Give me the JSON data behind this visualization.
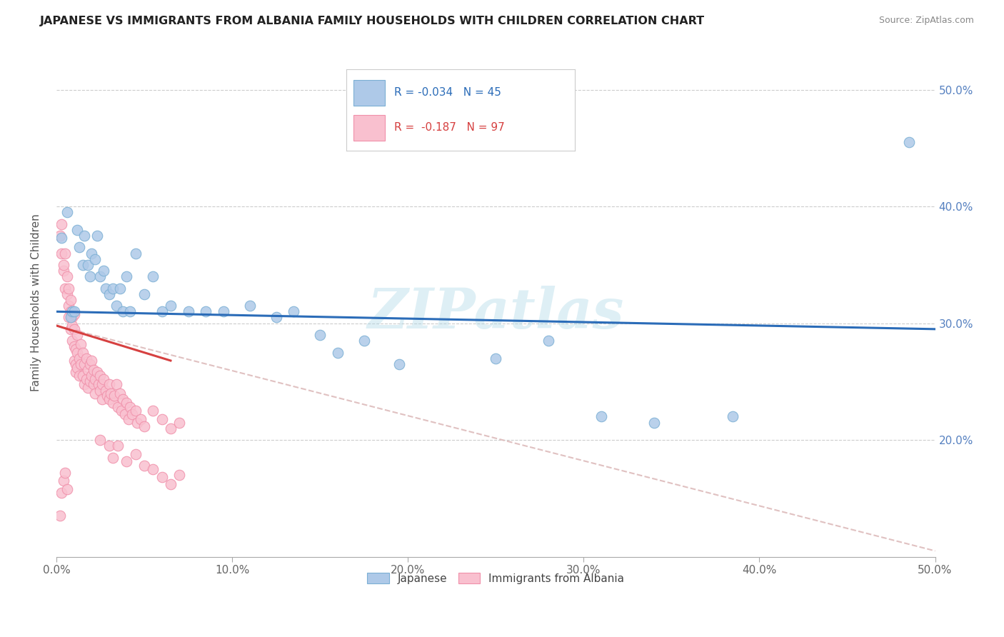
{
  "title": "JAPANESE VS IMMIGRANTS FROM ALBANIA FAMILY HOUSEHOLDS WITH CHILDREN CORRELATION CHART",
  "source": "Source: ZipAtlas.com",
  "ylabel": "Family Households with Children",
  "watermark": "ZIPatlas",
  "xlim": [
    0.0,
    0.5
  ],
  "ylim": [
    0.1,
    0.535
  ],
  "xtick_vals": [
    0.0,
    0.1,
    0.2,
    0.3,
    0.4,
    0.5
  ],
  "ytick_vals": [
    0.2,
    0.3,
    0.4,
    0.5
  ],
  "legend_r1": "R = -0.034",
  "legend_n1": "N = 45",
  "legend_r2": "R =  -0.187",
  "legend_n2": "N = 97",
  "blue_scatter_color": "#aec9e8",
  "blue_edge_color": "#7bafd4",
  "pink_scatter_color": "#f9c0cf",
  "pink_edge_color": "#f090aa",
  "blue_line_color": "#2b6cb8",
  "pink_line_color": "#d64040",
  "dashed_line_color": "#ddbbbb",
  "blue_line": {
    "x0": 0.0,
    "y0": 0.31,
    "x1": 0.5,
    "y1": 0.295
  },
  "pink_line_solid": {
    "x0": 0.0,
    "y0": 0.298,
    "x1": 0.065,
    "y1": 0.268
  },
  "pink_line_dashed": {
    "x0": 0.0,
    "y0": 0.298,
    "x1": 0.5,
    "y1": 0.105
  },
  "japanese_pts": [
    [
      0.003,
      0.373
    ],
    [
      0.006,
      0.395
    ],
    [
      0.008,
      0.305
    ],
    [
      0.009,
      0.31
    ],
    [
      0.01,
      0.31
    ],
    [
      0.012,
      0.38
    ],
    [
      0.013,
      0.365
    ],
    [
      0.015,
      0.35
    ],
    [
      0.016,
      0.375
    ],
    [
      0.018,
      0.35
    ],
    [
      0.019,
      0.34
    ],
    [
      0.02,
      0.36
    ],
    [
      0.022,
      0.355
    ],
    [
      0.023,
      0.375
    ],
    [
      0.025,
      0.34
    ],
    [
      0.027,
      0.345
    ],
    [
      0.028,
      0.33
    ],
    [
      0.03,
      0.325
    ],
    [
      0.032,
      0.33
    ],
    [
      0.034,
      0.315
    ],
    [
      0.036,
      0.33
    ],
    [
      0.038,
      0.31
    ],
    [
      0.04,
      0.34
    ],
    [
      0.042,
      0.31
    ],
    [
      0.045,
      0.36
    ],
    [
      0.05,
      0.325
    ],
    [
      0.055,
      0.34
    ],
    [
      0.06,
      0.31
    ],
    [
      0.065,
      0.315
    ],
    [
      0.075,
      0.31
    ],
    [
      0.085,
      0.31
    ],
    [
      0.095,
      0.31
    ],
    [
      0.11,
      0.315
    ],
    [
      0.125,
      0.305
    ],
    [
      0.135,
      0.31
    ],
    [
      0.15,
      0.29
    ],
    [
      0.16,
      0.275
    ],
    [
      0.175,
      0.285
    ],
    [
      0.195,
      0.265
    ],
    [
      0.25,
      0.27
    ],
    [
      0.28,
      0.285
    ],
    [
      0.31,
      0.22
    ],
    [
      0.34,
      0.215
    ],
    [
      0.385,
      0.22
    ],
    [
      0.485,
      0.455
    ]
  ],
  "albania_pts": [
    [
      0.002,
      0.375
    ],
    [
      0.003,
      0.36
    ],
    [
      0.003,
      0.385
    ],
    [
      0.004,
      0.345
    ],
    [
      0.004,
      0.35
    ],
    [
      0.005,
      0.33
    ],
    [
      0.005,
      0.36
    ],
    [
      0.006,
      0.325
    ],
    [
      0.006,
      0.34
    ],
    [
      0.007,
      0.315
    ],
    [
      0.007,
      0.33
    ],
    [
      0.007,
      0.305
    ],
    [
      0.008,
      0.32
    ],
    [
      0.008,
      0.31
    ],
    [
      0.008,
      0.295
    ],
    [
      0.009,
      0.305
    ],
    [
      0.009,
      0.298
    ],
    [
      0.009,
      0.285
    ],
    [
      0.01,
      0.295
    ],
    [
      0.01,
      0.308
    ],
    [
      0.01,
      0.28
    ],
    [
      0.01,
      0.268
    ],
    [
      0.011,
      0.278
    ],
    [
      0.011,
      0.265
    ],
    [
      0.011,
      0.258
    ],
    [
      0.012,
      0.29
    ],
    [
      0.012,
      0.275
    ],
    [
      0.012,
      0.262
    ],
    [
      0.013,
      0.27
    ],
    [
      0.013,
      0.255
    ],
    [
      0.014,
      0.282
    ],
    [
      0.014,
      0.265
    ],
    [
      0.015,
      0.255
    ],
    [
      0.015,
      0.275
    ],
    [
      0.016,
      0.265
    ],
    [
      0.016,
      0.248
    ],
    [
      0.017,
      0.27
    ],
    [
      0.017,
      0.252
    ],
    [
      0.018,
      0.26
    ],
    [
      0.018,
      0.245
    ],
    [
      0.019,
      0.265
    ],
    [
      0.019,
      0.25
    ],
    [
      0.02,
      0.255
    ],
    [
      0.02,
      0.268
    ],
    [
      0.021,
      0.26
    ],
    [
      0.021,
      0.248
    ],
    [
      0.022,
      0.252
    ],
    [
      0.022,
      0.24
    ],
    [
      0.023,
      0.258
    ],
    [
      0.024,
      0.248
    ],
    [
      0.025,
      0.255
    ],
    [
      0.025,
      0.242
    ],
    [
      0.026,
      0.248
    ],
    [
      0.026,
      0.235
    ],
    [
      0.027,
      0.252
    ],
    [
      0.028,
      0.242
    ],
    [
      0.029,
      0.238
    ],
    [
      0.03,
      0.248
    ],
    [
      0.03,
      0.235
    ],
    [
      0.031,
      0.24
    ],
    [
      0.032,
      0.232
    ],
    [
      0.033,
      0.238
    ],
    [
      0.034,
      0.248
    ],
    [
      0.035,
      0.228
    ],
    [
      0.036,
      0.24
    ],
    [
      0.037,
      0.225
    ],
    [
      0.038,
      0.235
    ],
    [
      0.039,
      0.222
    ],
    [
      0.04,
      0.232
    ],
    [
      0.041,
      0.218
    ],
    [
      0.042,
      0.228
    ],
    [
      0.043,
      0.222
    ],
    [
      0.045,
      0.225
    ],
    [
      0.046,
      0.215
    ],
    [
      0.048,
      0.218
    ],
    [
      0.05,
      0.212
    ],
    [
      0.002,
      0.135
    ],
    [
      0.025,
      0.2
    ],
    [
      0.03,
      0.195
    ],
    [
      0.032,
      0.185
    ],
    [
      0.035,
      0.195
    ],
    [
      0.04,
      0.182
    ],
    [
      0.045,
      0.188
    ],
    [
      0.05,
      0.178
    ],
    [
      0.055,
      0.175
    ],
    [
      0.06,
      0.168
    ],
    [
      0.065,
      0.162
    ],
    [
      0.07,
      0.17
    ],
    [
      0.003,
      0.155
    ],
    [
      0.004,
      0.165
    ],
    [
      0.005,
      0.172
    ],
    [
      0.006,
      0.158
    ],
    [
      0.055,
      0.225
    ],
    [
      0.06,
      0.218
    ],
    [
      0.065,
      0.21
    ],
    [
      0.07,
      0.215
    ]
  ]
}
